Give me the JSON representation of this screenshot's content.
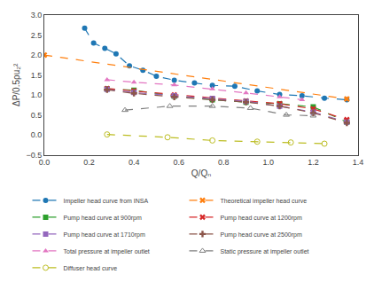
{
  "chart_data": {
    "type": "line",
    "xlabel": "Q/Qₙ",
    "ylabel": "ΔP/0.5ρu₂²",
    "xlim": [
      0,
      1.4
    ],
    "ylim": [
      -0.5,
      3.0
    ],
    "xticks": [
      {
        "value": 0,
        "label": "0.0"
      },
      0.2,
      0.4,
      0.6,
      0.8,
      {
        "value": 1.0,
        "label": "1.0"
      },
      1.2,
      1.4
    ],
    "yticks": [
      {
        "value": -0.5,
        "label": "−0.5"
      },
      {
        "value": 0,
        "label": "0.0"
      },
      0.5,
      {
        "value": 1.0,
        "label": "1.0"
      },
      1.5,
      {
        "value": 2.0,
        "label": "2.0"
      },
      2.5,
      {
        "value": 3.0,
        "label": "3.0"
      }
    ],
    "grid": false,
    "legend": "bottom",
    "line_style": "dash",
    "series": [
      {
        "name": "Impeller head curve from INSA",
        "marker": "circle",
        "x": [
          0.18,
          0.22,
          0.27,
          0.32,
          0.38,
          0.44,
          0.5,
          0.58,
          0.67,
          0.75,
          0.85,
          0.95,
          1.05,
          1.15,
          1.25,
          1.35
        ],
        "values": [
          2.67,
          2.3,
          2.17,
          2.03,
          1.73,
          1.62,
          1.47,
          1.37,
          1.3,
          1.24,
          1.22,
          1.1,
          1.01,
          0.98,
          0.92,
          0.88
        ]
      },
      {
        "name": "Theoretical impeller head curve",
        "marker": "x",
        "x": [
          0.0,
          1.35
        ],
        "values": [
          2.0,
          0.9
        ]
      },
      {
        "name": "Pump head curve at 900rpm",
        "marker": "square",
        "x": [
          0.28,
          0.4,
          0.58,
          0.75,
          0.9,
          1.05,
          1.2,
          1.35
        ],
        "values": [
          1.15,
          1.12,
          0.97,
          0.88,
          0.82,
          0.78,
          0.7,
          0.32
        ]
      },
      {
        "name": "Pump head curve at 1200rpm",
        "marker": "x",
        "x": [
          0.28,
          0.4,
          0.58,
          0.75,
          0.9,
          1.05,
          1.2,
          1.35
        ],
        "values": [
          1.16,
          1.1,
          1.0,
          0.91,
          0.85,
          0.78,
          0.65,
          0.38
        ]
      },
      {
        "name": "Pump head curve at 1710rpm",
        "marker": "square",
        "x": [
          0.28,
          0.4,
          0.58,
          0.75,
          0.9,
          1.05,
          1.2,
          1.35
        ],
        "values": [
          1.14,
          1.06,
          0.98,
          0.91,
          0.84,
          0.72,
          0.57,
          0.32
        ]
      },
      {
        "name": "Pump head curve at 2500rpm",
        "marker": "cross",
        "x": [
          0.28,
          0.4,
          0.58,
          0.75,
          0.9,
          1.05,
          1.2,
          1.35
        ],
        "values": [
          1.13,
          1.04,
          0.95,
          0.88,
          0.82,
          0.72,
          0.55,
          0.3
        ]
      },
      {
        "name": "Total pressure at impeller outlet",
        "marker": "triangle-up",
        "x": [
          0.28,
          0.4,
          0.58,
          0.75,
          0.9,
          1.05,
          1.15
        ],
        "values": [
          1.38,
          1.32,
          1.25,
          1.15,
          1.05,
          0.95,
          0.88
        ]
      },
      {
        "name": "Static pressure at impeller outlet",
        "marker": "triangle-up-open",
        "x": [
          0.36,
          0.56,
          0.75,
          0.92,
          1.08,
          1.2
        ],
        "values": [
          0.62,
          0.72,
          0.72,
          0.67,
          0.5,
          0.48
        ]
      },
      {
        "name": "Diffuser head curve",
        "marker": "circle-open",
        "x": [
          0.28,
          0.55,
          0.75,
          0.95,
          1.1,
          1.25
        ],
        "values": [
          0.01,
          -0.06,
          -0.14,
          -0.17,
          -0.19,
          -0.22
        ]
      }
    ]
  }
}
